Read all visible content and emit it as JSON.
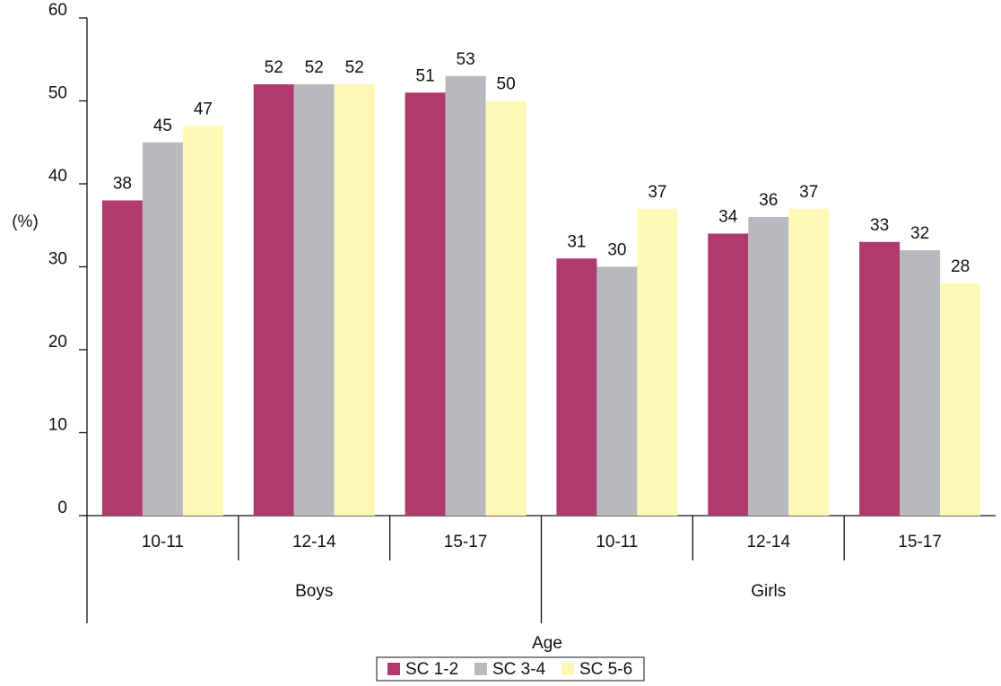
{
  "chart_data": {
    "type": "bar",
    "categories": [
      "10-11",
      "12-14",
      "15-17",
      "10-11",
      "12-14",
      "15-17"
    ],
    "groups": [
      "Boys",
      "Girls"
    ],
    "series": [
      {
        "name": "SC 1-2",
        "color": "#b03a6e",
        "values": [
          38,
          52,
          51,
          31,
          34,
          33
        ]
      },
      {
        "name": "SC 3-4",
        "color": "#b8b9bc",
        "values": [
          45,
          52,
          53,
          30,
          36,
          32
        ]
      },
      {
        "name": "SC 5-6",
        "color": "#fef8b4",
        "values": [
          47,
          52,
          50,
          37,
          37,
          28
        ]
      }
    ],
    "ylabel": "(%)",
    "xlabel": "Age",
    "ylim": [
      0,
      60
    ],
    "yticks": [
      0,
      10,
      20,
      30,
      40,
      50,
      60
    ],
    "grid": false,
    "legend": "bottom"
  }
}
